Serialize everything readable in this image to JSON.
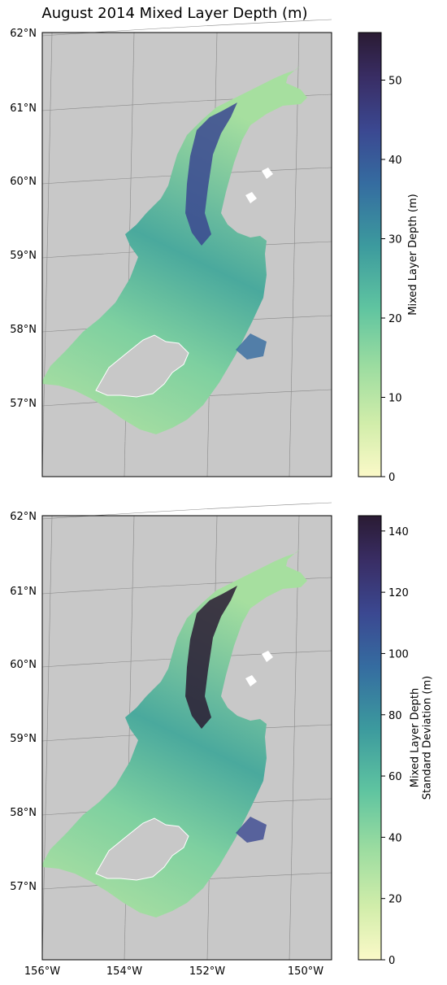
{
  "title": "August 2014 Mixed Layer Depth (m)",
  "palette": {
    "land": "#c8c8c8",
    "water_stops": [
      "#fbf9c8",
      "#d1edaa",
      "#9bdca0",
      "#5fc4a0",
      "#3c9a9e",
      "#356ca0",
      "#3b4891",
      "#392d64",
      "#2a1b33"
    ]
  },
  "maps": [
    {
      "lat_labels": [
        "62°N",
        "61°N",
        "60°N",
        "59°N",
        "58°N",
        "57°N"
      ],
      "lon_labels": [],
      "colorbar": {
        "label_lines": [
          "Mixed Layer Depth (m)"
        ],
        "min": 0,
        "max": 56,
        "ticks": [
          {
            "value": 0,
            "label": "0"
          },
          {
            "value": 10,
            "label": "10"
          },
          {
            "value": 20,
            "label": "20"
          },
          {
            "value": 30,
            "label": "30"
          },
          {
            "value": 40,
            "label": "40"
          },
          {
            "value": 50,
            "label": "50"
          }
        ]
      }
    },
    {
      "lat_labels": [
        "62°N",
        "61°N",
        "60°N",
        "59°N",
        "58°N",
        "57°N"
      ],
      "lon_labels": [
        "156°W",
        "154°W",
        "152°W",
        "150°W"
      ],
      "colorbar": {
        "label_lines": [
          "Mixed Layer Depth",
          "Standard Deviation (m)"
        ],
        "min": 0,
        "max": 145,
        "ticks": [
          {
            "value": 0,
            "label": "0"
          },
          {
            "value": 20,
            "label": "20"
          },
          {
            "value": 40,
            "label": "40"
          },
          {
            "value": 60,
            "label": "60"
          },
          {
            "value": 80,
            "label": "80"
          },
          {
            "value": 100,
            "label": "100"
          },
          {
            "value": 120,
            "label": "120"
          },
          {
            "value": 140,
            "label": "140"
          }
        ]
      }
    }
  ]
}
